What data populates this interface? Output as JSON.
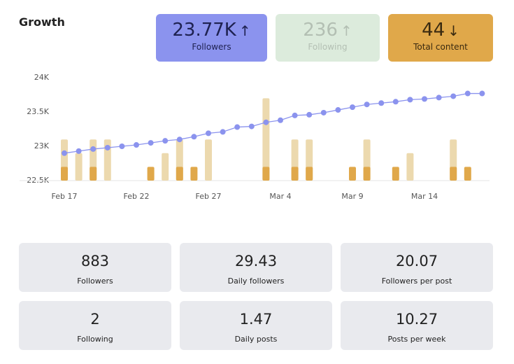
{
  "header": {
    "title": "Growth",
    "cards": [
      {
        "value": "23.77K",
        "label": "Followers"
      },
      {
        "value": "236",
        "label": "Following"
      },
      {
        "value": "44",
        "label": "Total content"
      }
    ]
  },
  "chart_data": {
    "type": "combo",
    "categories": [
      "Feb 17",
      null,
      null,
      null,
      null,
      "Feb 22",
      null,
      null,
      null,
      null,
      "Feb 27",
      null,
      null,
      null,
      null,
      "Mar 4",
      null,
      null,
      null,
      null,
      "Mar 9",
      null,
      null,
      null,
      null,
      "Mar 14",
      null,
      null,
      null,
      null
    ],
    "ylim": [
      22500,
      24000
    ],
    "yticks": [
      {
        "value": 22500,
        "label": "22.5K"
      },
      {
        "value": 23000,
        "label": "23K"
      },
      {
        "value": 23500,
        "label": "23.5K"
      },
      {
        "value": 24000,
        "label": "24K"
      }
    ],
    "y2lim": [
      0,
      7.5
    ],
    "series": [
      {
        "type": "line",
        "axis": "y",
        "color": "#8b93ee",
        "values": [
          22900,
          22930,
          22960,
          22980,
          23000,
          23020,
          23050,
          23080,
          23100,
          23140,
          23190,
          23210,
          23280,
          23290,
          23350,
          23380,
          23450,
          23460,
          23490,
          23530,
          23570,
          23610,
          23630,
          23650,
          23680,
          23690,
          23710,
          23730,
          23770,
          23770
        ]
      },
      {
        "type": "bar",
        "axis": "y2",
        "color": "#ecd9ae",
        "values": [
          3,
          2,
          3,
          3,
          0,
          0,
          0,
          2,
          3,
          0,
          3,
          0,
          0,
          0,
          6,
          0,
          3,
          3,
          0,
          0,
          0,
          3,
          0,
          0,
          2,
          0,
          0,
          3,
          0,
          0
        ]
      },
      {
        "type": "bar",
        "axis": "y2",
        "color": "#e0a84a",
        "values": [
          1,
          0,
          1,
          0,
          0,
          0,
          1,
          0,
          1,
          1,
          0,
          0,
          0,
          0,
          1,
          0,
          1,
          1,
          0,
          0,
          1,
          1,
          0,
          1,
          0,
          0,
          0,
          1,
          1,
          0
        ]
      }
    ]
  },
  "stats": [
    {
      "value": "883",
      "label": "Followers"
    },
    {
      "value": "29.43",
      "label": "Daily followers"
    },
    {
      "value": "20.07",
      "label": "Followers per post"
    },
    {
      "value": "2",
      "label": "Following"
    },
    {
      "value": "1.47",
      "label": "Daily posts"
    },
    {
      "value": "10.27",
      "label": "Posts per week"
    }
  ]
}
